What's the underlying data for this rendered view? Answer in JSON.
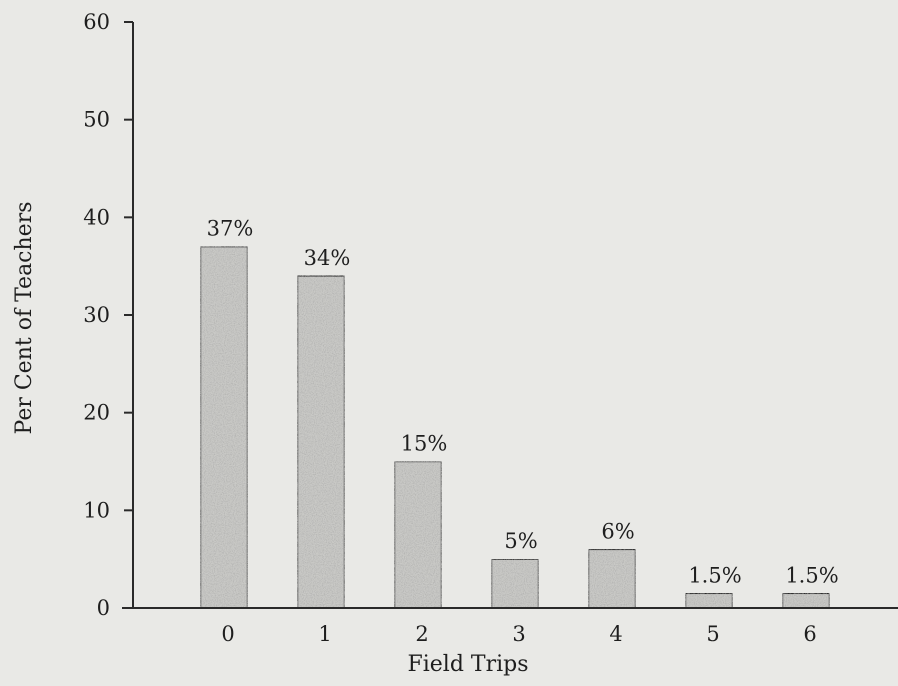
{
  "chart_data": {
    "type": "bar",
    "categories": [
      "0",
      "1",
      "2",
      "3",
      "4",
      "5",
      "6"
    ],
    "values": [
      37,
      34,
      15,
      5,
      6,
      1.5,
      1.5
    ],
    "value_labels": [
      "37%",
      "34%",
      "15%",
      "5%",
      "6%",
      "1.5%",
      "1.5%"
    ],
    "xlabel": "Field Trips",
    "ylabel": "Per Cent of Teachers",
    "ylim": [
      0,
      60
    ],
    "yticks": [
      "0",
      "10",
      "20",
      "30",
      "40",
      "50",
      "60"
    ],
    "grid": false,
    "bar_fill": "#c9c9c6",
    "bar_stroke": "#2a2a2a",
    "axis_color": "#2a2a2a",
    "background": "#e9e9e6"
  }
}
